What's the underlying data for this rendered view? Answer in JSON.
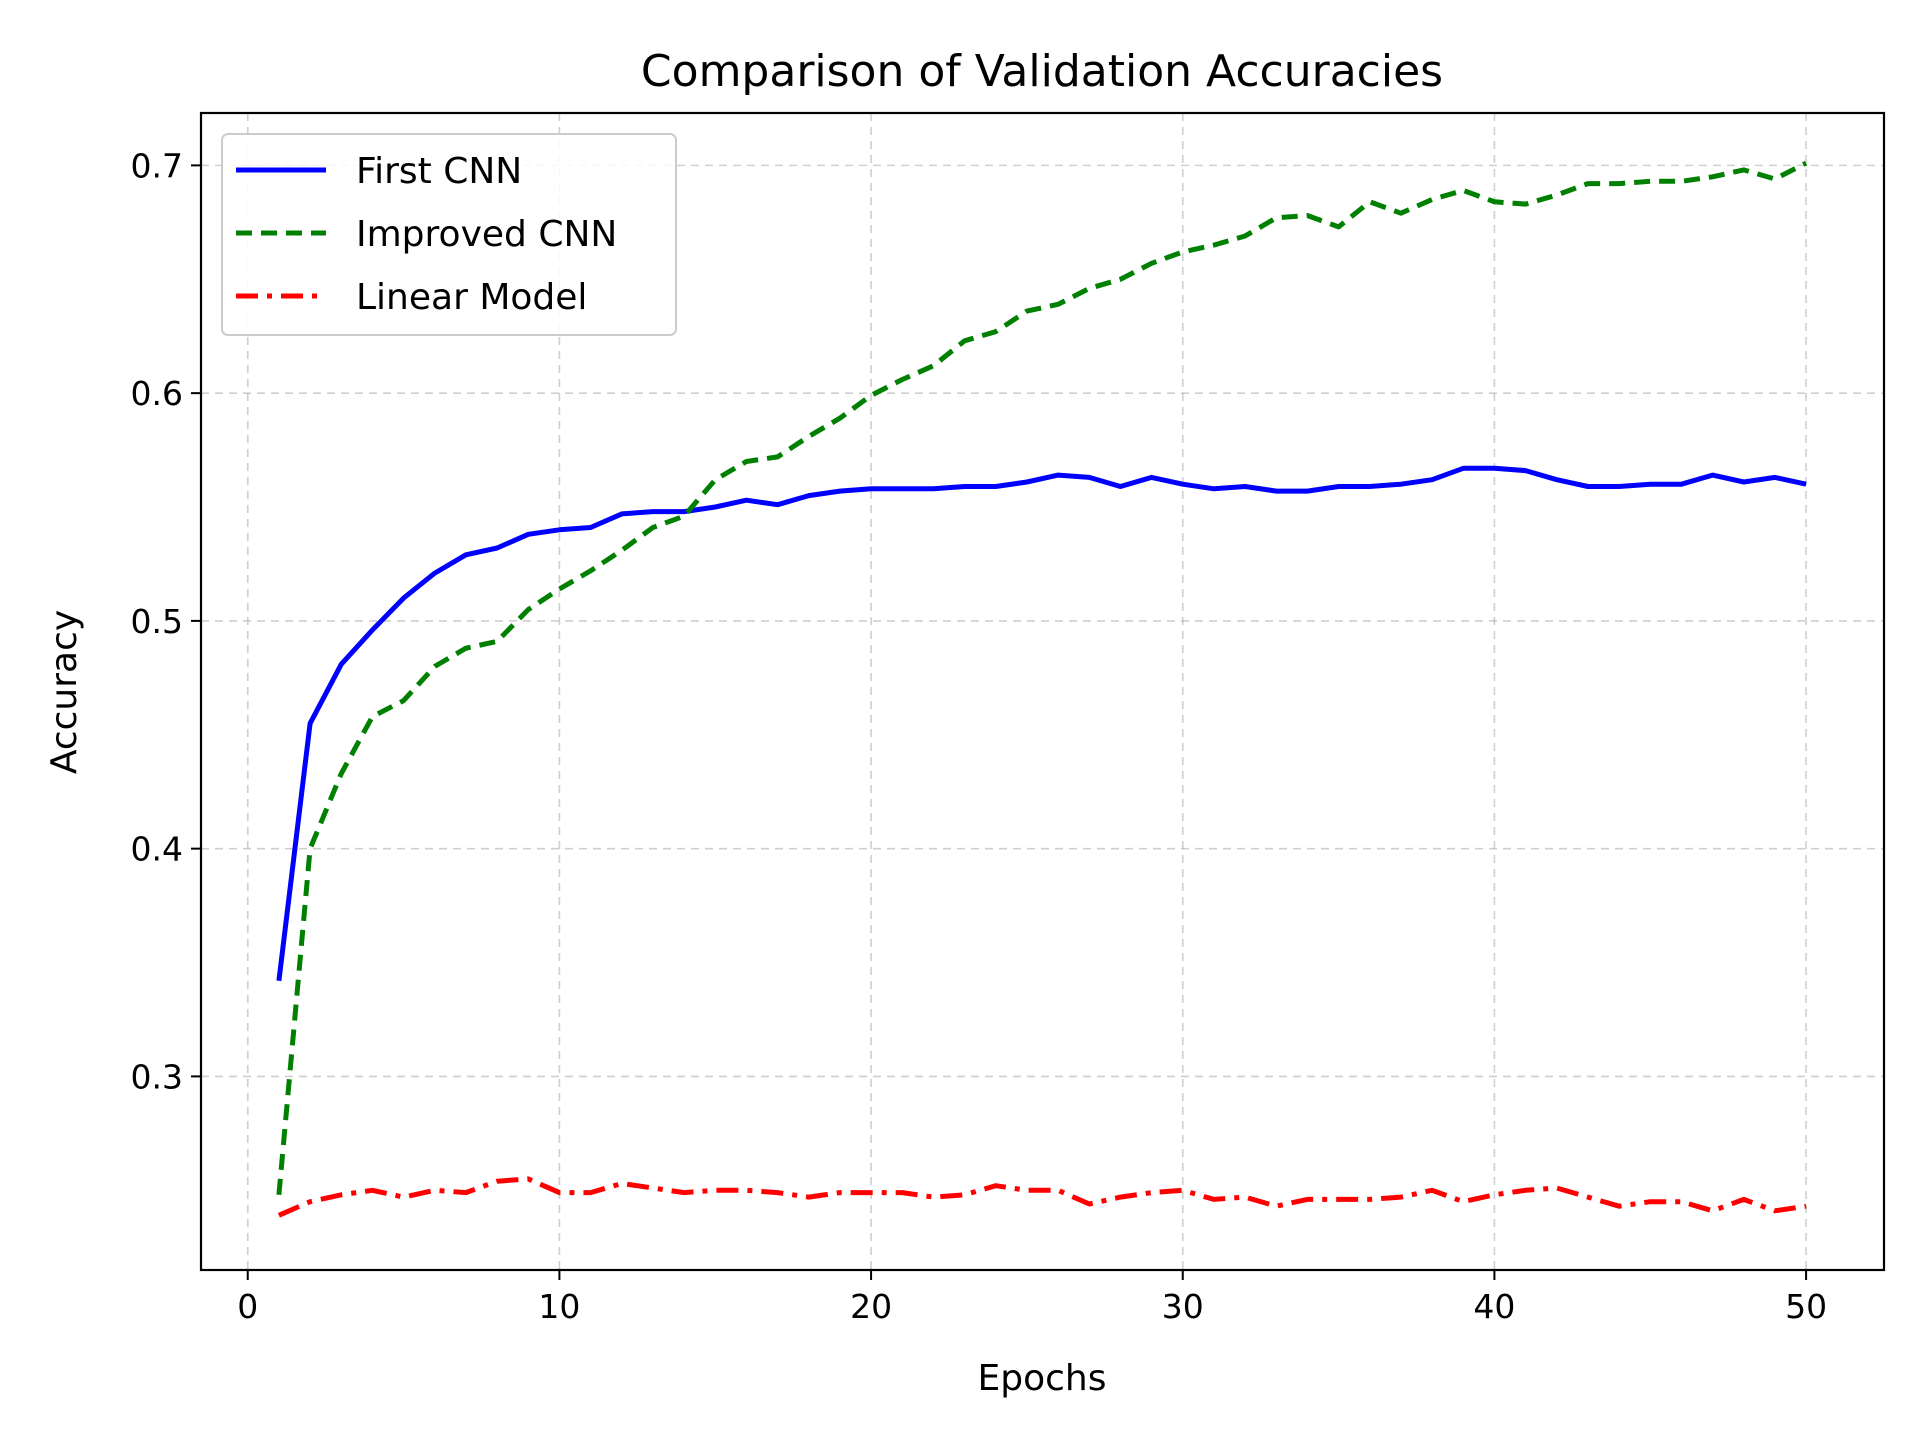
{
  "chart_data": {
    "type": "line",
    "title": "Comparison of Validation Accuracies",
    "xlabel": "Epochs",
    "ylabel": "Accuracy",
    "xlim": [
      -1.5,
      52.5
    ],
    "ylim": [
      0.215,
      0.723
    ],
    "xticks": [
      0,
      10,
      20,
      30,
      40,
      50
    ],
    "yticks": [
      0.3,
      0.4,
      0.5,
      0.6,
      0.7
    ],
    "grid": true,
    "legend_position": "top-left",
    "x": [
      1,
      2,
      3,
      4,
      5,
      6,
      7,
      8,
      9,
      10,
      11,
      12,
      13,
      14,
      15,
      16,
      17,
      18,
      19,
      20,
      21,
      22,
      23,
      24,
      25,
      26,
      27,
      28,
      29,
      30,
      31,
      32,
      33,
      34,
      35,
      36,
      37,
      38,
      39,
      40,
      41,
      42,
      43,
      44,
      45,
      46,
      47,
      48,
      49,
      50
    ],
    "series": [
      {
        "name": "First CNN",
        "color": "#0000ff",
        "style": "solid",
        "values": [
          0.342,
          0.455,
          0.481,
          0.496,
          0.51,
          0.521,
          0.529,
          0.532,
          0.538,
          0.54,
          0.541,
          0.547,
          0.548,
          0.548,
          0.55,
          0.553,
          0.551,
          0.555,
          0.557,
          0.558,
          0.558,
          0.558,
          0.559,
          0.559,
          0.561,
          0.564,
          0.563,
          0.559,
          0.563,
          0.56,
          0.558,
          0.559,
          0.557,
          0.557,
          0.559,
          0.559,
          0.56,
          0.562,
          0.567,
          0.567,
          0.566,
          0.562,
          0.559,
          0.559,
          0.56,
          0.56,
          0.564,
          0.561,
          0.563,
          0.56
        ]
      },
      {
        "name": "Improved CNN",
        "color": "#008000",
        "style": "dashed",
        "values": [
          0.248,
          0.4,
          0.433,
          0.458,
          0.465,
          0.48,
          0.488,
          0.491,
          0.505,
          0.514,
          0.522,
          0.531,
          0.541,
          0.546,
          0.562,
          0.57,
          0.572,
          0.581,
          0.589,
          0.599,
          0.606,
          0.612,
          0.623,
          0.627,
          0.636,
          0.639,
          0.646,
          0.65,
          0.657,
          0.662,
          0.665,
          0.669,
          0.677,
          0.678,
          0.673,
          0.684,
          0.679,
          0.685,
          0.689,
          0.684,
          0.683,
          0.687,
          0.692,
          0.692,
          0.693,
          0.693,
          0.695,
          0.698,
          0.694,
          0.701
        ]
      },
      {
        "name": "Linear Model",
        "color": "#ff0000",
        "style": "dashdot",
        "values": [
          0.239,
          0.245,
          0.248,
          0.25,
          0.247,
          0.25,
          0.249,
          0.254,
          0.255,
          0.249,
          0.249,
          0.253,
          0.251,
          0.249,
          0.25,
          0.25,
          0.249,
          0.247,
          0.249,
          0.249,
          0.249,
          0.247,
          0.248,
          0.252,
          0.25,
          0.25,
          0.244,
          0.247,
          0.249,
          0.25,
          0.246,
          0.247,
          0.243,
          0.246,
          0.246,
          0.246,
          0.247,
          0.25,
          0.245,
          0.248,
          0.25,
          0.251,
          0.247,
          0.243,
          0.245,
          0.245,
          0.241,
          0.246,
          0.241,
          0.243
        ]
      }
    ]
  }
}
